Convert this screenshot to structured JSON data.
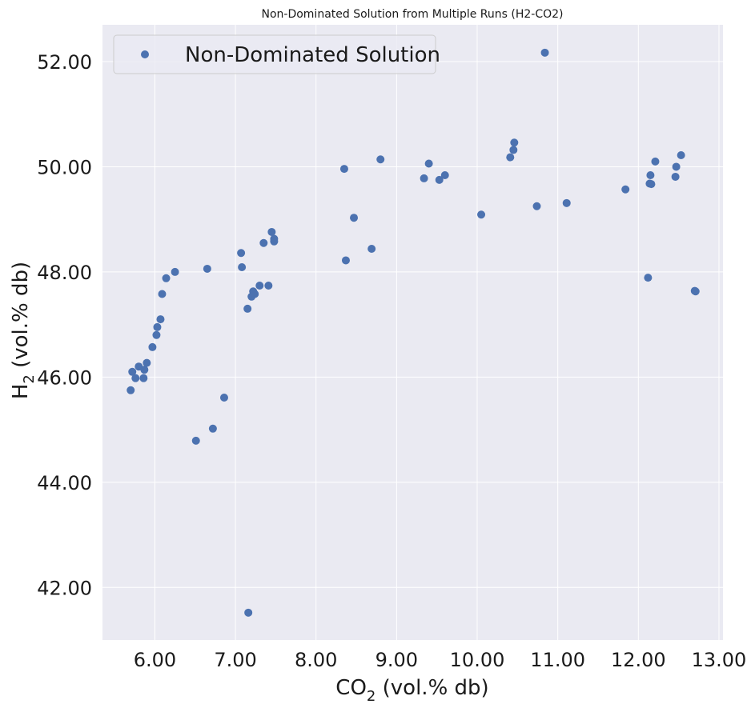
{
  "chart_data": {
    "type": "scatter",
    "title": "Non-Dominated Solution from Multiple Runs (H2-CO2)",
    "xlabel": {
      "main": "CO",
      "sub": "2",
      "rest": " (vol.% db)"
    },
    "ylabel": {
      "main": "H",
      "sub": "2",
      "rest": " (vol.% db)"
    },
    "xlim": [
      5.35,
      13.05
    ],
    "ylim": [
      41.0,
      52.7
    ],
    "xticks": [
      6,
      7,
      8,
      9,
      10,
      11,
      12,
      13
    ],
    "yticks": [
      42,
      44,
      46,
      48,
      50,
      52
    ],
    "xtick_labels": [
      "6.00",
      "7.00",
      "8.00",
      "9.00",
      "10.00",
      "11.00",
      "12.00",
      "13.00"
    ],
    "ytick_labels": [
      "42.00",
      "44.00",
      "46.00",
      "48.00",
      "50.00",
      "52.00"
    ],
    "grid": true,
    "legend_position": "top-left",
    "colors": {
      "point": "#4c72b0",
      "background": "#eaeaf2",
      "grid": "#ffffff"
    },
    "series": [
      {
        "name": "Non-Dominated Solution",
        "points": [
          [
            5.7,
            45.75
          ],
          [
            5.72,
            46.1
          ],
          [
            5.76,
            45.98
          ],
          [
            5.8,
            46.2
          ],
          [
            5.86,
            45.98
          ],
          [
            5.87,
            46.14
          ],
          [
            5.9,
            46.27
          ],
          [
            5.97,
            46.57
          ],
          [
            6.02,
            46.8
          ],
          [
            6.03,
            46.95
          ],
          [
            6.07,
            47.1
          ],
          [
            6.09,
            47.58
          ],
          [
            6.14,
            47.88
          ],
          [
            6.25,
            48.0
          ],
          [
            6.51,
            44.79
          ],
          [
            6.65,
            48.06
          ],
          [
            6.72,
            45.02
          ],
          [
            6.86,
            45.61
          ],
          [
            7.07,
            48.36
          ],
          [
            7.08,
            48.09
          ],
          [
            7.15,
            47.3
          ],
          [
            7.16,
            41.52
          ],
          [
            7.2,
            47.53
          ],
          [
            7.22,
            47.63
          ],
          [
            7.24,
            47.58
          ],
          [
            7.3,
            47.74
          ],
          [
            7.35,
            48.55
          ],
          [
            7.41,
            47.74
          ],
          [
            7.45,
            48.76
          ],
          [
            7.48,
            48.63
          ],
          [
            7.48,
            48.58
          ],
          [
            8.35,
            49.96
          ],
          [
            8.37,
            48.22
          ],
          [
            8.47,
            49.03
          ],
          [
            8.69,
            48.44
          ],
          [
            8.8,
            50.14
          ],
          [
            9.34,
            49.78
          ],
          [
            9.4,
            50.06
          ],
          [
            9.53,
            49.75
          ],
          [
            9.6,
            49.84
          ],
          [
            10.05,
            49.09
          ],
          [
            10.41,
            50.18
          ],
          [
            10.45,
            50.32
          ],
          [
            10.46,
            50.46
          ],
          [
            10.74,
            49.25
          ],
          [
            10.84,
            52.17
          ],
          [
            11.11,
            49.31
          ],
          [
            11.84,
            49.57
          ],
          [
            12.12,
            47.89
          ],
          [
            12.14,
            49.68
          ],
          [
            12.15,
            49.84
          ],
          [
            12.16,
            49.67
          ],
          [
            12.21,
            50.1
          ],
          [
            12.46,
            49.81
          ],
          [
            12.47,
            50.0
          ],
          [
            12.53,
            50.22
          ],
          [
            12.7,
            47.64
          ],
          [
            12.71,
            47.63
          ]
        ]
      }
    ]
  }
}
